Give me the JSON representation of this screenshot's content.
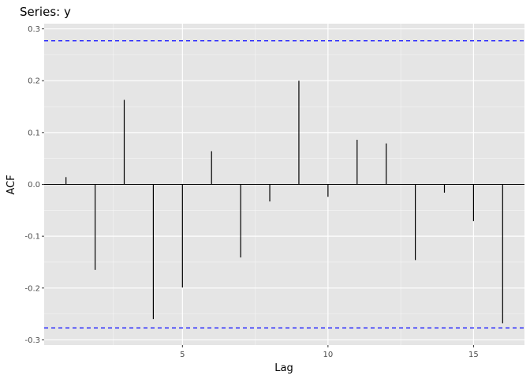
{
  "chart_data": {
    "type": "bar",
    "title": "Series: y",
    "xlabel": "Lag",
    "ylabel": "ACF",
    "x": [
      1,
      2,
      3,
      4,
      5,
      6,
      7,
      8,
      9,
      10,
      11,
      12,
      13,
      14,
      15,
      16
    ],
    "values": [
      0.014,
      -0.165,
      0.163,
      -0.26,
      -0.199,
      0.064,
      -0.141,
      -0.033,
      0.2,
      -0.024,
      0.086,
      0.079,
      -0.146,
      -0.016,
      -0.071,
      -0.268
    ],
    "xlim": [
      0.25,
      16.75
    ],
    "ylim": [
      -0.31,
      0.31
    ],
    "x_ticks": [
      5,
      10,
      15
    ],
    "x_tick_labels": [
      "5",
      "10",
      "15"
    ],
    "y_ticks": [
      -0.3,
      -0.2,
      -0.1,
      0.0,
      0.1,
      0.2,
      0.3
    ],
    "y_tick_labels": [
      "-0.3",
      "-0.2",
      "-0.1",
      "0.0",
      "0.1",
      "0.2",
      "0.3"
    ],
    "confidence_bounds": [
      0.277,
      -0.277
    ],
    "grid": true,
    "colors": {
      "panel": "#e5e5e5",
      "grid_major": "#ffffff",
      "bars": "#000000",
      "bounds": "#1a1aff"
    }
  }
}
